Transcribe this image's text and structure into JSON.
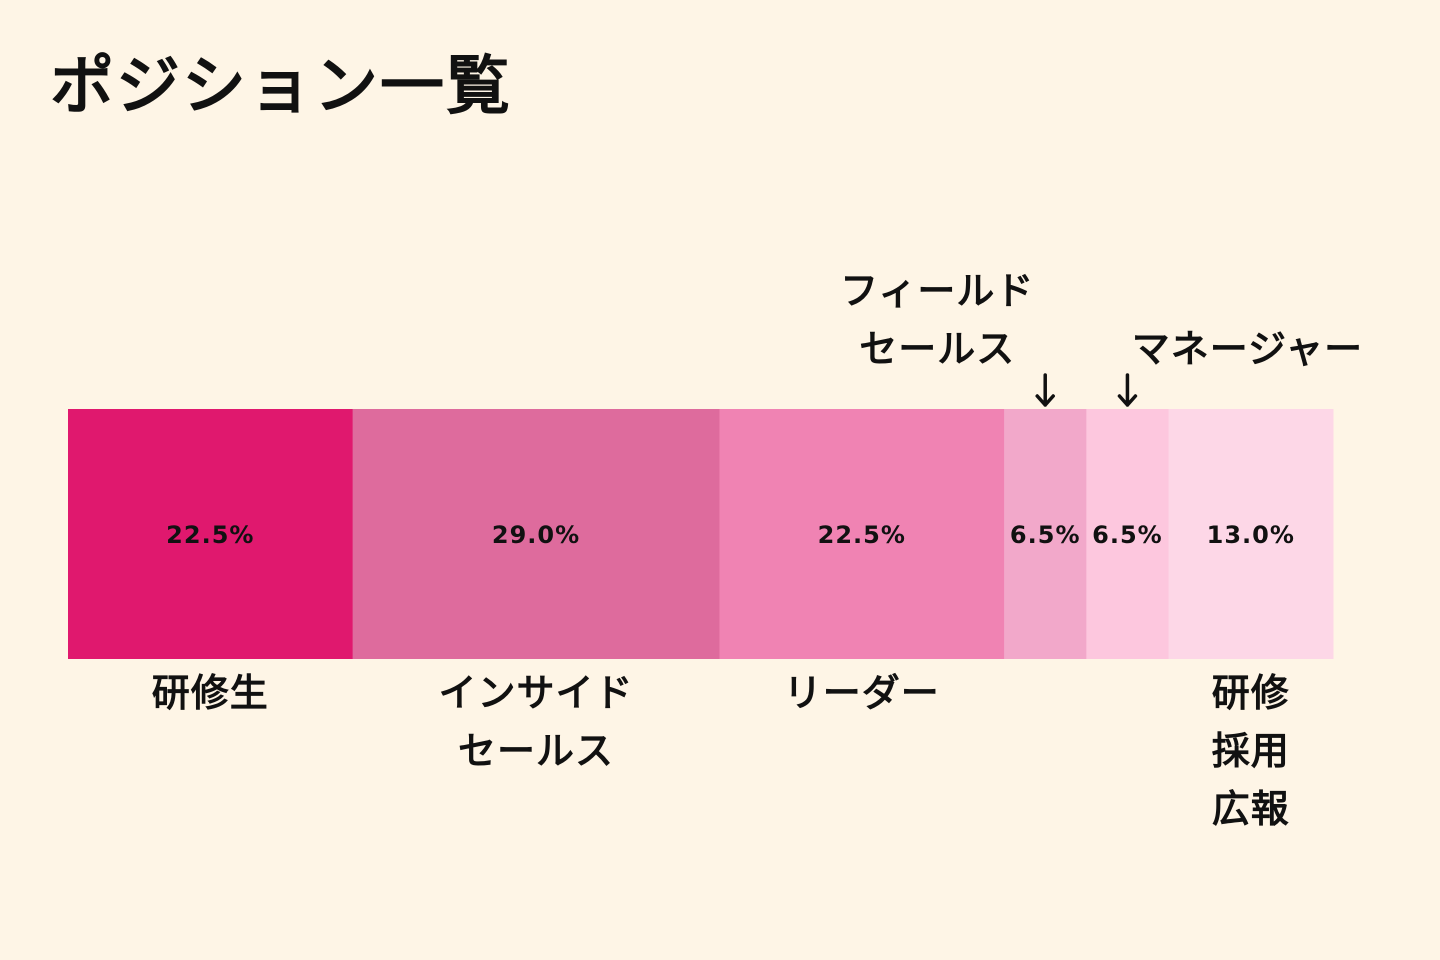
{
  "title": "ポジション一覧",
  "chart_data": {
    "type": "bar",
    "orientation": "horizontal-stacked-100",
    "xlim": [
      0,
      100
    ],
    "segments": [
      {
        "value": 22.5,
        "value_label": "22.5%",
        "label_lines": [
          "研修生"
        ],
        "label_position": "below",
        "color": "#e0186e"
      },
      {
        "value": 29.0,
        "value_label": "29.0%",
        "label_lines": [
          "インサイド",
          "セールス"
        ],
        "label_position": "below",
        "color": "#de6b9d"
      },
      {
        "value": 22.5,
        "value_label": "22.5%",
        "label_lines": [
          "リーダー"
        ],
        "label_position": "below",
        "color": "#f083b3"
      },
      {
        "value": 6.5,
        "value_label": "6.5%",
        "label_lines": [
          "フィールド",
          "セールス"
        ],
        "label_position": "above-arrow",
        "color": "#f2a8ca"
      },
      {
        "value": 6.5,
        "value_label": "6.5%",
        "label_lines": [
          "マネージャー"
        ],
        "label_position": "above-arrow",
        "color": "#fdc7de"
      },
      {
        "value": 13.0,
        "value_label": "13.0%",
        "label_lines": [
          "研修",
          "採用",
          "広報"
        ],
        "label_position": "below",
        "color": "#fdd7e7"
      }
    ]
  }
}
